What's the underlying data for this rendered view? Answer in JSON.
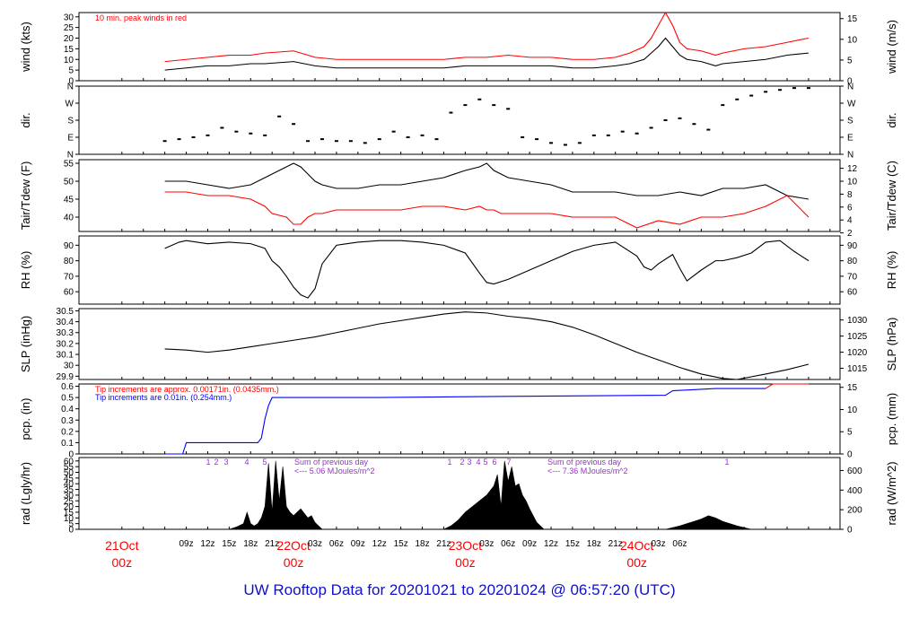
{
  "chart_data": [
    {
      "type": "line",
      "ylabel": "wind (kts)",
      "y2label": "wind (m/s)",
      "yticks": [
        0,
        5,
        10,
        15,
        20,
        25,
        30
      ],
      "y2ticks": [
        0,
        5,
        10,
        15
      ],
      "ylim": [
        0,
        32
      ],
      "annotation": "10 min. peak winds in red",
      "series": [
        {
          "color": "#000000",
          "x": [
            0,
            3,
            6,
            9,
            12,
            14,
            18,
            21,
            24,
            27,
            30,
            33,
            36,
            39,
            42,
            45,
            48,
            51,
            54,
            57,
            60,
            63,
            65,
            67,
            68,
            69,
            70,
            71,
            72,
            73,
            75,
            77,
            78,
            81,
            84,
            87,
            90
          ],
          "y": [
            5,
            6,
            7,
            7,
            8,
            8,
            9,
            7,
            6,
            6,
            6,
            6,
            6,
            6,
            7,
            7,
            7,
            7,
            7,
            6,
            6,
            7,
            8,
            10,
            13,
            16,
            20,
            16,
            12,
            10,
            9,
            7,
            8,
            9,
            10,
            12,
            13
          ]
        },
        {
          "color": "#ff0000",
          "x": [
            0,
            3,
            6,
            9,
            12,
            14,
            18,
            21,
            24,
            27,
            30,
            33,
            36,
            39,
            42,
            45,
            48,
            51,
            54,
            57,
            60,
            63,
            65,
            67,
            68,
            69,
            70,
            71,
            72,
            73,
            75,
            77,
            78,
            81,
            84,
            87,
            90
          ],
          "y": [
            9,
            10,
            11,
            12,
            12,
            13,
            14,
            11,
            10,
            10,
            10,
            10,
            10,
            10,
            11,
            11,
            12,
            11,
            11,
            10,
            10,
            11,
            13,
            16,
            20,
            26,
            32,
            26,
            18,
            15,
            14,
            12,
            13,
            15,
            16,
            18,
            20
          ]
        }
      ]
    },
    {
      "type": "scatter",
      "ylabel": "dir.",
      "y2label": "dir.",
      "yticks": [
        "N",
        "E",
        "S",
        "W",
        "N"
      ],
      "y2ticks": [
        "N",
        "E",
        "S",
        "W",
        "N"
      ],
      "ylim": [
        0,
        360
      ],
      "series": [
        {
          "color": "#000000",
          "x": [
            0,
            2,
            4,
            6,
            8,
            10,
            12,
            14,
            16,
            18,
            20,
            22,
            24,
            26,
            28,
            30,
            32,
            34,
            36,
            38,
            40,
            42,
            44,
            46,
            48,
            50,
            52,
            54,
            56,
            58,
            60,
            62,
            64,
            66,
            68,
            70,
            72,
            74,
            76,
            78,
            80,
            82,
            84,
            86,
            88,
            90
          ],
          "y": [
            70,
            80,
            90,
            100,
            140,
            120,
            110,
            100,
            200,
            160,
            70,
            80,
            70,
            70,
            60,
            80,
            120,
            90,
            100,
            80,
            220,
            260,
            290,
            260,
            240,
            90,
            80,
            60,
            50,
            60,
            100,
            100,
            120,
            110,
            140,
            180,
            190,
            160,
            130,
            260,
            290,
            310,
            330,
            340,
            350,
            350
          ]
        }
      ]
    },
    {
      "type": "line",
      "ylabel": "Tair/Tdew (F)",
      "y2label": "Tair/Tdew (C)",
      "yticks": [
        40,
        45,
        50,
        55
      ],
      "y2ticks": [
        2,
        4,
        6,
        8,
        10,
        12
      ],
      "ylim": [
        36,
        56
      ],
      "series": [
        {
          "color": "#000000",
          "x": [
            0,
            3,
            6,
            9,
            12,
            14,
            15,
            17,
            18,
            19,
            20,
            21,
            22,
            24,
            27,
            30,
            33,
            36,
            39,
            42,
            44,
            45,
            46,
            47,
            48,
            51,
            54,
            57,
            60,
            63,
            66,
            69,
            72,
            75,
            78,
            81,
            84,
            87,
            90
          ],
          "y": [
            50,
            50,
            49,
            48,
            49,
            51,
            52,
            54,
            55,
            54,
            52,
            50,
            49,
            48,
            48,
            49,
            49,
            50,
            51,
            53,
            54,
            55,
            53,
            52,
            51,
            50,
            49,
            47,
            47,
            47,
            46,
            46,
            47,
            46,
            48,
            48,
            49,
            46,
            45
          ]
        },
        {
          "color": "#ff0000",
          "x": [
            0,
            3,
            6,
            9,
            12,
            14,
            15,
            17,
            18,
            19,
            20,
            21,
            22,
            24,
            27,
            30,
            33,
            36,
            39,
            42,
            44,
            45,
            46,
            47,
            48,
            51,
            54,
            57,
            60,
            63,
            66,
            69,
            72,
            75,
            78,
            81,
            84,
            87,
            90
          ],
          "y": [
            47,
            47,
            46,
            46,
            45,
            43,
            41,
            40,
            38,
            38,
            40,
            41,
            41,
            42,
            42,
            42,
            42,
            43,
            43,
            42,
            43,
            42,
            42,
            41,
            41,
            41,
            41,
            40,
            40,
            40,
            37,
            39,
            38,
            40,
            40,
            41,
            43,
            46,
            40
          ]
        }
      ]
    },
    {
      "type": "line",
      "ylabel": "RH (%)",
      "y2label": "RH (%)",
      "yticks": [
        60,
        70,
        80,
        90
      ],
      "y2ticks": [
        60,
        70,
        80,
        90
      ],
      "ylim": [
        52,
        96
      ],
      "series": [
        {
          "color": "#000000",
          "x": [
            0,
            2,
            3,
            6,
            9,
            12,
            14,
            15,
            16,
            17,
            18,
            19,
            20,
            21,
            22,
            24,
            27,
            30,
            33,
            36,
            39,
            42,
            44,
            45,
            46,
            48,
            51,
            54,
            57,
            60,
            63,
            66,
            67,
            68,
            69,
            71,
            72,
            73,
            75,
            77,
            78,
            80,
            82,
            84,
            86,
            88,
            90
          ],
          "y": [
            88,
            92,
            93,
            91,
            92,
            91,
            88,
            80,
            76,
            70,
            63,
            58,
            56,
            62,
            78,
            90,
            92,
            93,
            93,
            92,
            90,
            85,
            72,
            66,
            65,
            68,
            74,
            80,
            86,
            90,
            92,
            83,
            76,
            74,
            78,
            84,
            75,
            67,
            74,
            80,
            80,
            82,
            85,
            92,
            93,
            86,
            80
          ]
        }
      ]
    },
    {
      "type": "line",
      "ylabel": "SLP (inHg)",
      "y2label": "SLP (hPa)",
      "yticks": [
        29.9,
        30.0,
        30.1,
        30.2,
        30.3,
        30.4,
        30.5
      ],
      "y2ticks": [
        1015,
        1020,
        1025,
        1030
      ],
      "ylim": [
        29.87,
        30.52
      ],
      "series": [
        {
          "color": "#000000",
          "x": [
            0,
            3,
            6,
            9,
            12,
            15,
            18,
            21,
            24,
            27,
            30,
            33,
            36,
            39,
            42,
            45,
            48,
            51,
            54,
            57,
            60,
            63,
            66,
            69,
            72,
            75,
            78,
            80,
            84,
            87,
            90
          ],
          "y": [
            30.15,
            30.14,
            30.12,
            30.14,
            30.17,
            30.2,
            30.23,
            30.26,
            30.3,
            30.34,
            30.38,
            30.41,
            30.44,
            30.47,
            30.49,
            30.48,
            30.45,
            30.43,
            30.4,
            30.35,
            30.28,
            30.2,
            30.12,
            30.05,
            29.98,
            29.92,
            29.88,
            29.87,
            29.92,
            29.96,
            30.01
          ]
        }
      ]
    },
    {
      "type": "line",
      "ylabel": "pcp. (in)",
      "y2label": "pcp. (mm)",
      "yticks": [
        0,
        0.1,
        0.2,
        0.3,
        0.4,
        0.5,
        0.6
      ],
      "y2ticks": [
        0,
        5,
        10,
        15
      ],
      "ylim": [
        0,
        0.62
      ],
      "annotation_red": "Tip increments are approx. 0.00171in. (0.0435mm.)",
      "annotation_blue": "Tip increments are 0.01in. (0.254mm.)",
      "series": [
        {
          "color": "#0000ff",
          "x": [
            0,
            2.5,
            3,
            13,
            13.5,
            14,
            14.5,
            15,
            16,
            30,
            48,
            70,
            71,
            77,
            84
          ],
          "y": [
            0,
            0,
            0.1,
            0.1,
            0.14,
            0.31,
            0.43,
            0.5,
            0.5,
            0.5,
            0.51,
            0.52,
            0.56,
            0.58,
            0.58
          ]
        },
        {
          "color": "#ff0000",
          "x": [
            84,
            85,
            90
          ],
          "y": [
            0.58,
            0.62,
            0.62
          ]
        }
      ]
    },
    {
      "type": "area",
      "ylabel": "rad (Lgly/hr)",
      "y2label": "rad (W/m^2)",
      "yticks": [
        0,
        5,
        10,
        15,
        20,
        25,
        30,
        35,
        40,
        45,
        50,
        55,
        60
      ],
      "y2ticks": [
        0,
        200,
        400,
        600
      ],
      "ylim": [
        0,
        63
      ],
      "annotation_1": "Sum of previous day",
      "annotation_2": "<--- 5.06 MJoules/m^2",
      "annotation_3": "Sum of previous day",
      "annotation_4": "<--- 7.36 MJoules/m^2",
      "series": [
        {
          "color": "#000000",
          "x": [
            9,
            10,
            11,
            11.5,
            12,
            12.5,
            13,
            13.5,
            14,
            14.5,
            15,
            15.5,
            16,
            16.5,
            17,
            17.5,
            18,
            18.5,
            19,
            19.5,
            20,
            20.5,
            21,
            21.5,
            22
          ],
          "y": [
            0,
            2,
            5,
            15,
            5,
            3,
            5,
            10,
            20,
            58,
            15,
            60,
            25,
            55,
            20,
            15,
            12,
            15,
            18,
            14,
            10,
            12,
            6,
            3,
            0
          ]
        },
        {
          "color": "#000000",
          "x": [
            39,
            40,
            41,
            42,
            43,
            44,
            45,
            46,
            46.5,
            47,
            47.5,
            48,
            48.5,
            49,
            49.5,
            50,
            50.5,
            51,
            52,
            53
          ],
          "y": [
            0,
            3,
            8,
            15,
            20,
            25,
            30,
            38,
            48,
            20,
            60,
            42,
            55,
            38,
            40,
            30,
            25,
            18,
            6,
            0
          ]
        },
        {
          "color": "#000000",
          "x": [
            70,
            72,
            74,
            75,
            76,
            77,
            78,
            80,
            82
          ],
          "y": [
            0,
            3,
            7,
            9,
            12,
            10,
            7,
            3,
            0
          ]
        }
      ]
    },
    {
      "type": "axis",
      "xticks": [
        "09z",
        "12z",
        "15z",
        "18z",
        "21z",
        "22Oct",
        "03z",
        "06z",
        "09z",
        "12z",
        "15z",
        "18z",
        "21z",
        "23Oct",
        "03z",
        "06z",
        "09z",
        "12z",
        "15z",
        "18z",
        "21z",
        "24Oct",
        "03z",
        "06z"
      ],
      "days": [
        {
          "date": "21Oct",
          "hour": "00z"
        },
        {
          "date": "22Oct",
          "hour": "00z"
        },
        {
          "date": "23Oct",
          "hour": "00z"
        },
        {
          "date": "24Oct",
          "hour": "00z"
        }
      ],
      "xrange_hours": [
        0,
        90
      ],
      "radiation_labels_day1": [
        "1",
        "2",
        "3",
        "4",
        "5"
      ],
      "radiation_labels_day2": [
        "1",
        "2",
        "3",
        "4",
        "5",
        "6",
        "7"
      ],
      "radiation_labels_day3": [
        "1"
      ]
    }
  ],
  "footer": {
    "title": "UW Rooftop Data for 20201021  to  20201024 @ 06:57:20  (UTC)"
  }
}
